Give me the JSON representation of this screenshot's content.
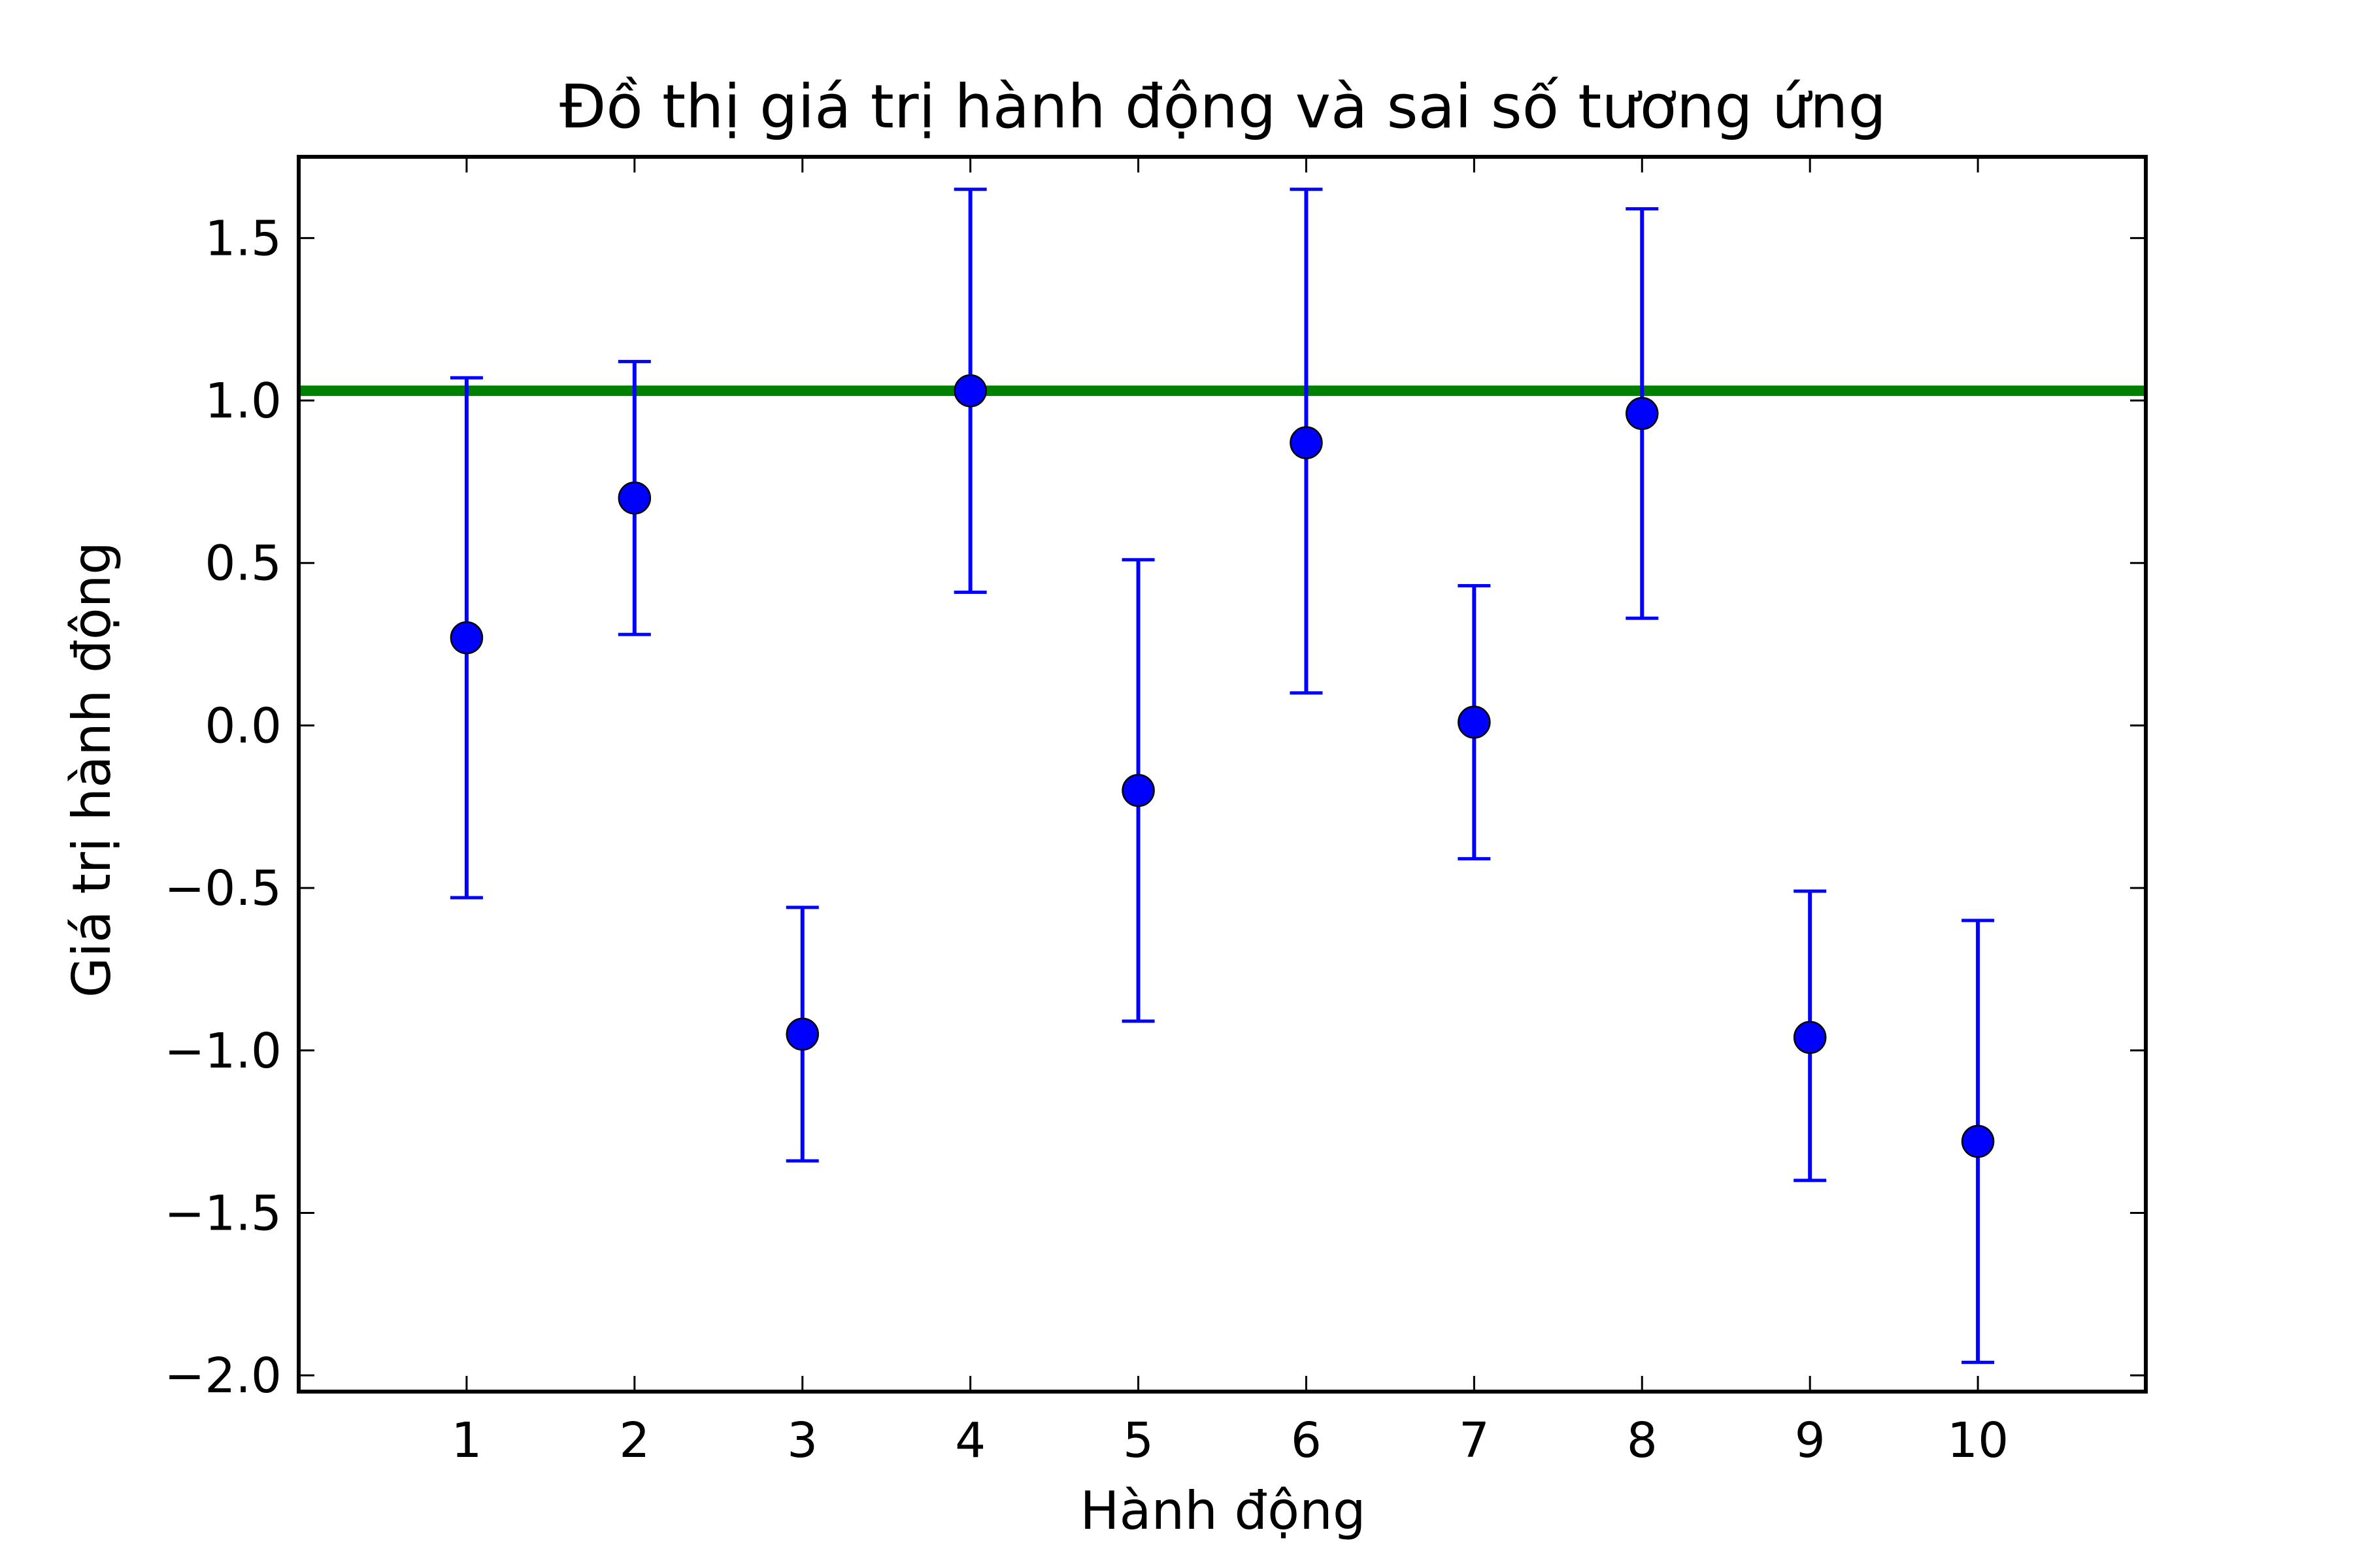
{
  "chart_data": {
    "type": "scatter",
    "title": "Đồ thị giá trị hành động và sai số tương ứng",
    "xlabel": "Hành động",
    "ylabel": "Giá trị hành động",
    "xlim": [
      0,
      11
    ],
    "ylim": [
      -2.05,
      1.75
    ],
    "x_ticks": [
      "1",
      "2",
      "3",
      "4",
      "5",
      "6",
      "7",
      "8",
      "9",
      "10"
    ],
    "y_ticks": [
      "1.5",
      "1.0",
      "0.5",
      "0.0",
      "−0.5",
      "−1.0",
      "−1.5",
      "−2.0"
    ],
    "y_tick_values": [
      1.5,
      1.0,
      0.5,
      0.0,
      -0.5,
      -1.0,
      -1.5,
      -2.0
    ],
    "grid": false,
    "series": [
      {
        "x": [
          1,
          2,
          3,
          4,
          5,
          6,
          7,
          8,
          9,
          10
        ],
        "y": [
          0.27,
          0.7,
          -0.95,
          1.03,
          -0.2,
          0.87,
          0.01,
          0.96,
          -0.96,
          -1.28
        ],
        "y_lower": [
          -0.53,
          0.28,
          -1.34,
          0.41,
          -0.91,
          0.1,
          -0.41,
          0.33,
          -1.4,
          -1.96
        ],
        "y_upper": [
          1.07,
          1.12,
          -0.56,
          1.65,
          0.51,
          1.65,
          0.43,
          1.59,
          -0.51,
          -0.6
        ],
        "color": "#0000ff"
      }
    ],
    "reference_line": {
      "y": 1.03,
      "color": "#008000"
    }
  }
}
